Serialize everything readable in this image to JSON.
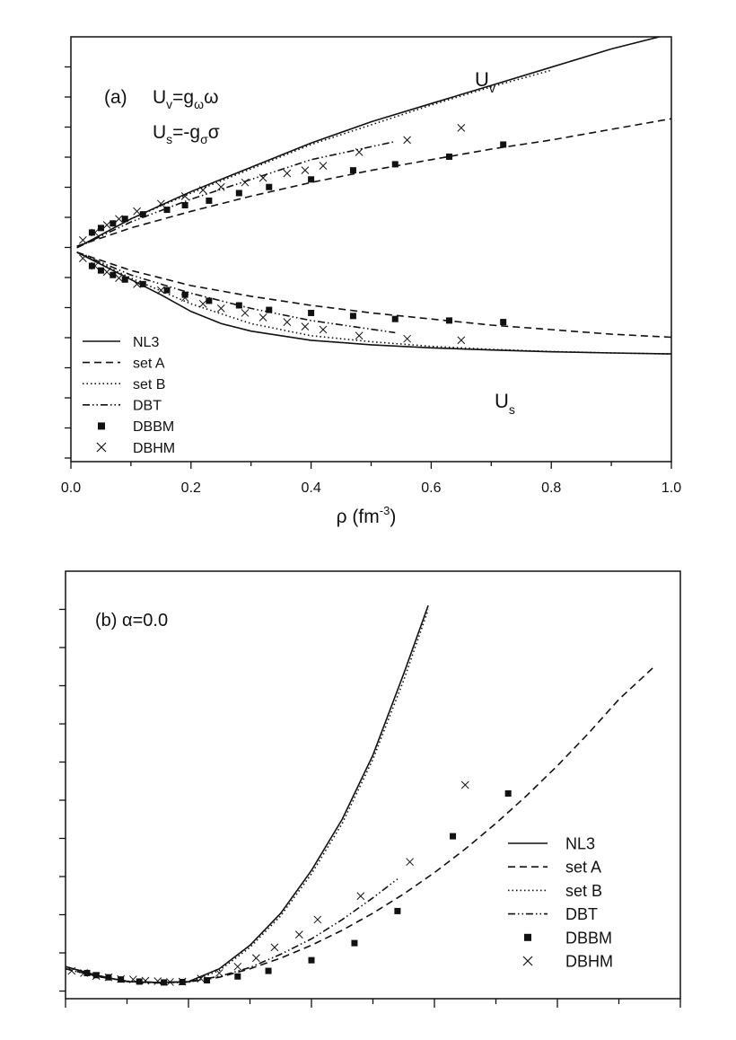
{
  "chart_data": [
    {
      "type": "line",
      "panel_label": "(a)",
      "annotations": {
        "eq_vector": "U_v=g_ω ω",
        "eq_scalar": "U_s=-g_σ σ",
        "label_uv": "U_v",
        "label_us": "U_s"
      },
      "xlabel": "ρ (fm⁻³)",
      "ylabel": "",
      "xlim": [
        0,
        1.0
      ],
      "ylim": [
        -7,
        7
      ],
      "xticks": [
        0.0,
        0.2,
        0.4,
        0.6,
        0.8,
        1.0
      ],
      "xtick_labels": [
        "0.0",
        "0.2",
        "0.4",
        "0.6",
        "0.8",
        "1.0"
      ],
      "legend_position": "bottom-left",
      "legend": [
        "NL3",
        "set A",
        "set  B",
        "DBT",
        "DBBM",
        "DBHM"
      ],
      "series": [
        {
          "name": "NL3",
          "style": "solid",
          "branch": "Uv",
          "x": [
            0.01,
            0.1,
            0.2,
            0.3,
            0.4,
            0.5,
            0.6,
            0.7,
            0.8,
            0.9,
            1.0
          ],
          "y": [
            0.05,
            1.0,
            1.9,
            2.7,
            3.5,
            4.2,
            4.8,
            5.4,
            6.0,
            6.6,
            7.1
          ]
        },
        {
          "name": "NL3",
          "style": "solid",
          "branch": "Us",
          "x": [
            0.01,
            0.05,
            0.1,
            0.15,
            0.2,
            0.25,
            0.3,
            0.4,
            0.5,
            0.6,
            0.7,
            0.8,
            0.9,
            1.0
          ],
          "y": [
            -0.1,
            -0.5,
            -1.0,
            -1.5,
            -2.05,
            -2.45,
            -2.7,
            -3.0,
            -3.15,
            -3.25,
            -3.32,
            -3.38,
            -3.42,
            -3.45
          ]
        },
        {
          "name": "set A",
          "style": "dashed",
          "branch": "Uv",
          "x": [
            0.01,
            0.1,
            0.2,
            0.3,
            0.4,
            0.5,
            0.6,
            0.7,
            0.8,
            0.9,
            1.0
          ],
          "y": [
            0.1,
            0.7,
            1.25,
            1.75,
            2.2,
            2.6,
            2.95,
            3.3,
            3.6,
            3.95,
            4.3
          ]
        },
        {
          "name": "set A",
          "style": "dashed",
          "branch": "Us",
          "x": [
            0.01,
            0.1,
            0.2,
            0.3,
            0.4,
            0.5,
            0.6,
            0.7,
            0.8,
            0.9,
            1.0
          ],
          "y": [
            -0.1,
            -0.7,
            -1.2,
            -1.55,
            -1.85,
            -2.1,
            -2.3,
            -2.5,
            -2.65,
            -2.8,
            -2.9
          ]
        },
        {
          "name": "set  B",
          "style": "dotted",
          "branch": "Uv",
          "x": [
            0.01,
            0.1,
            0.2,
            0.3,
            0.4,
            0.5,
            0.6,
            0.7,
            0.8
          ],
          "y": [
            0.05,
            1.0,
            1.85,
            2.65,
            3.45,
            4.1,
            4.75,
            5.35,
            5.9
          ]
        },
        {
          "name": "set  B",
          "style": "dotted",
          "branch": "Us",
          "x": [
            0.01,
            0.1,
            0.2,
            0.3,
            0.4,
            0.5,
            0.6,
            0.7,
            0.8,
            0.9,
            1.0
          ],
          "y": [
            -0.1,
            -0.95,
            -1.8,
            -2.45,
            -2.85,
            -3.05,
            -3.2,
            -3.3,
            -3.37,
            -3.42,
            -3.45
          ]
        },
        {
          "name": "DBT",
          "style": "dashdotdot",
          "branch": "Uv",
          "x": [
            0.01,
            0.1,
            0.2,
            0.3,
            0.4,
            0.54
          ],
          "y": [
            0.05,
            0.9,
            1.65,
            2.3,
            2.95,
            3.55
          ]
        },
        {
          "name": "DBT",
          "style": "dashdotdot",
          "branch": "Us",
          "x": [
            0.01,
            0.1,
            0.2,
            0.3,
            0.4,
            0.54
          ],
          "y": [
            -0.1,
            -0.85,
            -1.45,
            -1.95,
            -2.35,
            -2.75
          ]
        },
        {
          "name": "DBBM",
          "style": "marker-square",
          "branch": "Uv",
          "x": [
            0.035,
            0.05,
            0.07,
            0.09,
            0.12,
            0.16,
            0.19,
            0.23,
            0.28,
            0.33,
            0.4,
            0.47,
            0.54,
            0.63,
            0.72
          ],
          "y": [
            0.55,
            0.7,
            0.85,
            1.0,
            1.15,
            1.3,
            1.45,
            1.6,
            1.85,
            2.05,
            2.3,
            2.6,
            2.8,
            3.05,
            3.45
          ]
        },
        {
          "name": "DBBM",
          "style": "marker-square",
          "branch": "Us",
          "x": [
            0.035,
            0.05,
            0.07,
            0.09,
            0.12,
            0.16,
            0.19,
            0.23,
            0.28,
            0.33,
            0.4,
            0.47,
            0.54,
            0.63,
            0.72
          ],
          "y": [
            -0.55,
            -0.7,
            -0.85,
            -1.0,
            -1.15,
            -1.35,
            -1.5,
            -1.7,
            -1.85,
            -2.0,
            -2.1,
            -2.2,
            -2.3,
            -2.35,
            -2.4
          ]
        },
        {
          "name": "DBHM",
          "style": "marker-x",
          "branch": "Uv",
          "x": [
            0.02,
            0.04,
            0.06,
            0.08,
            0.11,
            0.15,
            0.19,
            0.22,
            0.25,
            0.29,
            0.32,
            0.36,
            0.39,
            0.42,
            0.48,
            0.56,
            0.65
          ],
          "y": [
            0.3,
            0.55,
            0.8,
            1.0,
            1.25,
            1.5,
            1.75,
            1.95,
            2.05,
            2.2,
            2.35,
            2.5,
            2.6,
            2.75,
            3.2,
            3.6,
            4.0
          ]
        },
        {
          "name": "DBHM",
          "style": "marker-x",
          "branch": "Us",
          "x": [
            0.02,
            0.04,
            0.06,
            0.08,
            0.11,
            0.15,
            0.19,
            0.22,
            0.25,
            0.29,
            0.32,
            0.36,
            0.39,
            0.42,
            0.48,
            0.56,
            0.65
          ],
          "y": [
            -0.3,
            -0.55,
            -0.75,
            -0.95,
            -1.15,
            -1.35,
            -1.6,
            -1.8,
            -1.95,
            -2.1,
            -2.25,
            -2.4,
            -2.55,
            -2.65,
            -2.85,
            -2.95,
            -3.0
          ]
        }
      ]
    },
    {
      "type": "line",
      "panel_label": "(b)",
      "annotation": "α=0.0",
      "xlabel": "",
      "ylabel": "",
      "xlim": [
        0,
        1.0
      ],
      "ylim": [
        -20,
        80
      ],
      "legend_position": "bottom-right",
      "legend": [
        "NL3",
        "set A",
        "set B",
        "DBT",
        "DBBM",
        "DBHM"
      ],
      "series": [
        {
          "name": "NL3",
          "style": "solid",
          "x": [
            0.0,
            0.05,
            0.1,
            0.15,
            0.2,
            0.25,
            0.3,
            0.35,
            0.4,
            0.45,
            0.5,
            0.55,
            0.59
          ],
          "y": [
            -12.5,
            -14.5,
            -16.0,
            -16.2,
            -16.0,
            -13.0,
            -7.5,
            0.0,
            10.0,
            22.0,
            37.0,
            56.0,
            72.0
          ]
        },
        {
          "name": "set A",
          "style": "dashed",
          "x": [
            0.0,
            0.05,
            0.1,
            0.15,
            0.2,
            0.25,
            0.3,
            0.35,
            0.4,
            0.45,
            0.5,
            0.55,
            0.6,
            0.65,
            0.7,
            0.75,
            0.8,
            0.85,
            0.9,
            0.96
          ],
          "y": [
            -13.0,
            -14.7,
            -15.9,
            -16.2,
            -16.1,
            -15.0,
            -13.0,
            -10.5,
            -7.5,
            -4.0,
            0.0,
            4.5,
            9.5,
            15.0,
            21.0,
            27.5,
            34.5,
            42.0,
            50.0,
            58.0
          ]
        },
        {
          "name": "set B",
          "style": "dotted",
          "x": [
            0.0,
            0.05,
            0.1,
            0.15,
            0.2,
            0.25,
            0.3,
            0.35,
            0.4,
            0.45,
            0.5,
            0.55,
            0.59
          ],
          "y": [
            -12.5,
            -14.5,
            -16.0,
            -16.3,
            -16.2,
            -13.4,
            -8.0,
            -0.6,
            9.2,
            21.0,
            36.0,
            54.5,
            71.0
          ]
        },
        {
          "name": "DBT",
          "style": "dashdotdot",
          "x": [
            0.0,
            0.05,
            0.1,
            0.15,
            0.2,
            0.25,
            0.3,
            0.35,
            0.4,
            0.45,
            0.5,
            0.54
          ],
          "y": [
            -13.0,
            -14.8,
            -15.9,
            -16.3,
            -16.0,
            -14.8,
            -12.7,
            -9.6,
            -6.0,
            -1.5,
            3.6,
            8.0
          ]
        },
        {
          "name": "DBBM",
          "style": "marker-square",
          "x": [
            0.035,
            0.05,
            0.07,
            0.09,
            0.12,
            0.16,
            0.19,
            0.23,
            0.28,
            0.33,
            0.4,
            0.47,
            0.54,
            0.63,
            0.72
          ],
          "y": [
            -14.0,
            -14.5,
            -15.0,
            -15.5,
            -16.0,
            -16.2,
            -16.1,
            -15.7,
            -14.8,
            -13.5,
            -11.0,
            -7.0,
            0.5,
            18.0,
            28.0
          ]
        },
        {
          "name": "DBHM",
          "style": "marker-x",
          "x": [
            0.01,
            0.03,
            0.05,
            0.07,
            0.09,
            0.11,
            0.13,
            0.15,
            0.17,
            0.19,
            0.22,
            0.25,
            0.28,
            0.31,
            0.34,
            0.38,
            0.41,
            0.48,
            0.56,
            0.65
          ],
          "y": [
            -13.5,
            -14.0,
            -14.7,
            -15.0,
            -15.4,
            -15.5,
            -15.8,
            -15.9,
            -16.1,
            -16.0,
            -15.3,
            -14.0,
            -12.5,
            -10.5,
            -8.0,
            -5.0,
            -1.5,
            4.0,
            12.0,
            30.0
          ]
        }
      ]
    }
  ]
}
